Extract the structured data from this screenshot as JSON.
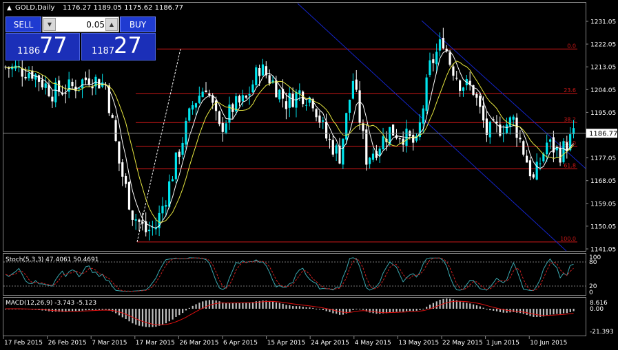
{
  "header": {
    "symbol_label": "GOLD,Daily",
    "ohlc": "1176.27 1189.05 1175.62 1186.77"
  },
  "trade_panel": {
    "sell_label": "SELL",
    "buy_label": "BUY",
    "lot_value": "0.05",
    "sell_price_small": "1186",
    "sell_price_big": "77",
    "buy_price_small": "1187",
    "buy_price_big": "27"
  },
  "price_axis": {
    "ticks": [
      "1231.05",
      "1222.05",
      "1213.05",
      "1204.05",
      "1195.05",
      "1186.77",
      "1177.05",
      "1168.05",
      "1159.05",
      "1150.05",
      "1141.05"
    ],
    "current_price": "1186.77"
  },
  "fibonacci": {
    "levels": [
      {
        "label": "0.0",
        "price": 1220.1
      },
      {
        "label": "23.6",
        "price": 1202.5
      },
      {
        "label": "38.2",
        "price": 1191.0
      },
      {
        "label": "50.0",
        "price": 1181.6
      },
      {
        "label": "61.8",
        "price": 1172.7
      },
      {
        "label": "100.0",
        "price": 1143.8
      }
    ]
  },
  "stoch": {
    "label": "Stoch(5,3,3) 47.4061 50.4691",
    "levels": [
      "100",
      "80",
      "20",
      "0"
    ]
  },
  "macd": {
    "label": "MACD(12,26,9) -3.743 -5.123",
    "axis": [
      "8.616",
      "0.00",
      "-21.393"
    ]
  },
  "time_axis": {
    "labels": [
      "17 Feb 2015",
      "26 Feb 2015",
      "7 Mar 2015",
      "17 Mar 2015",
      "26 Mar 2015",
      "6 Apr 2015",
      "15 Apr 2015",
      "24 Apr 2015",
      "4 May 2015",
      "13 May 2015",
      "22 May 2015",
      "1 Jun 2015",
      "10 Jun 2015"
    ]
  },
  "colors": {
    "bull": "#00e5ee",
    "bear": "#ffffff",
    "fib": "#d01818",
    "channel": "#1424c8",
    "ma_fast": "#ffffff",
    "ma_slow": "#e8e840",
    "stoch_main": "#3aa8b0",
    "stoch_signal": "#d02020",
    "macd_hist": "#c0c0c0",
    "macd_signal": "#e01010",
    "panel_button": "#1f3bd1"
  }
}
